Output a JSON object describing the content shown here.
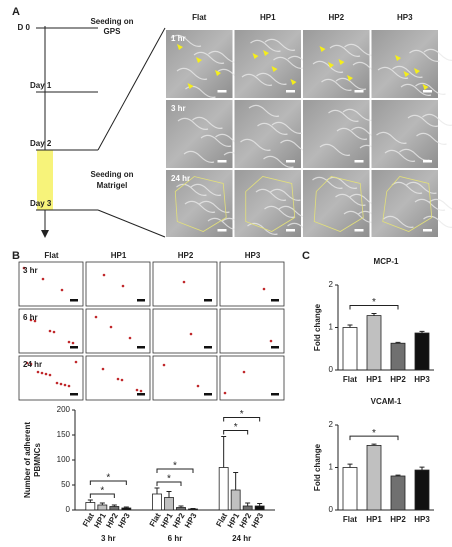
{
  "panel_a": {
    "label": "A",
    "timeline": [
      "D 0",
      "Day 1",
      "Day 2",
      "Day 3"
    ],
    "seeding_gps": [
      "Seeding on",
      "GPS"
    ],
    "seeding_matrigel": [
      "Seeding on",
      "Matrigel"
    ],
    "columns": [
      "Flat",
      "HP1",
      "HP2",
      "HP3"
    ],
    "rows": [
      "1 hr",
      "3 hr",
      "24 hr"
    ]
  },
  "panel_b": {
    "label": "B",
    "columns": [
      "Flat",
      "HP1",
      "HP2",
      "HP3"
    ],
    "rows": [
      "3 hr",
      "6 hr",
      "24 hr"
    ]
  },
  "panel_c": {
    "label": "C"
  },
  "chart_data": [
    {
      "type": "bar",
      "ylabel": [
        "Number of adherent",
        "PBMNCs"
      ],
      "categories": [
        "3 hr",
        "6 hr",
        "24 hr"
      ],
      "series": [
        {
          "name": "Flat",
          "color": "#ffffff",
          "values": [
            15,
            32,
            85
          ],
          "errors": [
            5,
            12,
            62
          ]
        },
        {
          "name": "HP1",
          "color": "#c0c0c0",
          "values": [
            10,
            25,
            40
          ],
          "errors": [
            4,
            12,
            35
          ]
        },
        {
          "name": "HP2",
          "color": "#707070",
          "values": [
            7,
            5,
            8
          ],
          "errors": [
            3,
            3,
            6
          ]
        },
        {
          "name": "HP3",
          "color": "#111111",
          "values": [
            4,
            2,
            8
          ],
          "errors": [
            2,
            1,
            5
          ]
        }
      ],
      "ylim": [
        0,
        200
      ],
      "yticks": [
        0,
        50,
        100,
        150,
        200
      ],
      "significance": [
        {
          "group": "3 hr",
          "pair": [
            "Flat",
            "HP2"
          ],
          "label": "*"
        },
        {
          "group": "3 hr",
          "pair": [
            "Flat",
            "HP3"
          ],
          "label": "*"
        },
        {
          "group": "6 hr",
          "pair": [
            "Flat",
            "HP2"
          ],
          "label": "*"
        },
        {
          "group": "6 hr",
          "pair": [
            "Flat",
            "HP3"
          ],
          "label": "*"
        },
        {
          "group": "24 hr",
          "pair": [
            "Flat",
            "HP2"
          ],
          "label": "*"
        },
        {
          "group": "24 hr",
          "pair": [
            "Flat",
            "HP3"
          ],
          "label": "*"
        }
      ]
    },
    {
      "type": "bar",
      "title": "MCP-1",
      "ylabel": [
        "Fold change"
      ],
      "categories": [
        "Flat",
        "HP1",
        "HP2",
        "HP3"
      ],
      "values": [
        1.0,
        1.28,
        0.63,
        0.87
      ],
      "errors": [
        0.06,
        0.05,
        0.02,
        0.04
      ],
      "colors": [
        "#ffffff",
        "#c0c0c0",
        "#707070",
        "#111111"
      ],
      "ylim": [
        0,
        2
      ],
      "yticks": [
        0,
        1,
        2
      ],
      "significance": [
        {
          "pair": [
            "Flat",
            "HP2"
          ],
          "label": "*"
        }
      ]
    },
    {
      "type": "bar",
      "title": "VCAM-1",
      "ylabel": [
        "Fold change"
      ],
      "categories": [
        "Flat",
        "HP1",
        "HP2",
        "HP3"
      ],
      "values": [
        1.0,
        1.52,
        0.8,
        0.94
      ],
      "errors": [
        0.08,
        0.03,
        0.02,
        0.07
      ],
      "colors": [
        "#ffffff",
        "#c0c0c0",
        "#707070",
        "#111111"
      ],
      "ylim": [
        0,
        2
      ],
      "yticks": [
        0,
        1,
        2
      ],
      "significance": [
        {
          "pair": [
            "Flat",
            "HP2"
          ],
          "label": "*"
        }
      ]
    }
  ]
}
